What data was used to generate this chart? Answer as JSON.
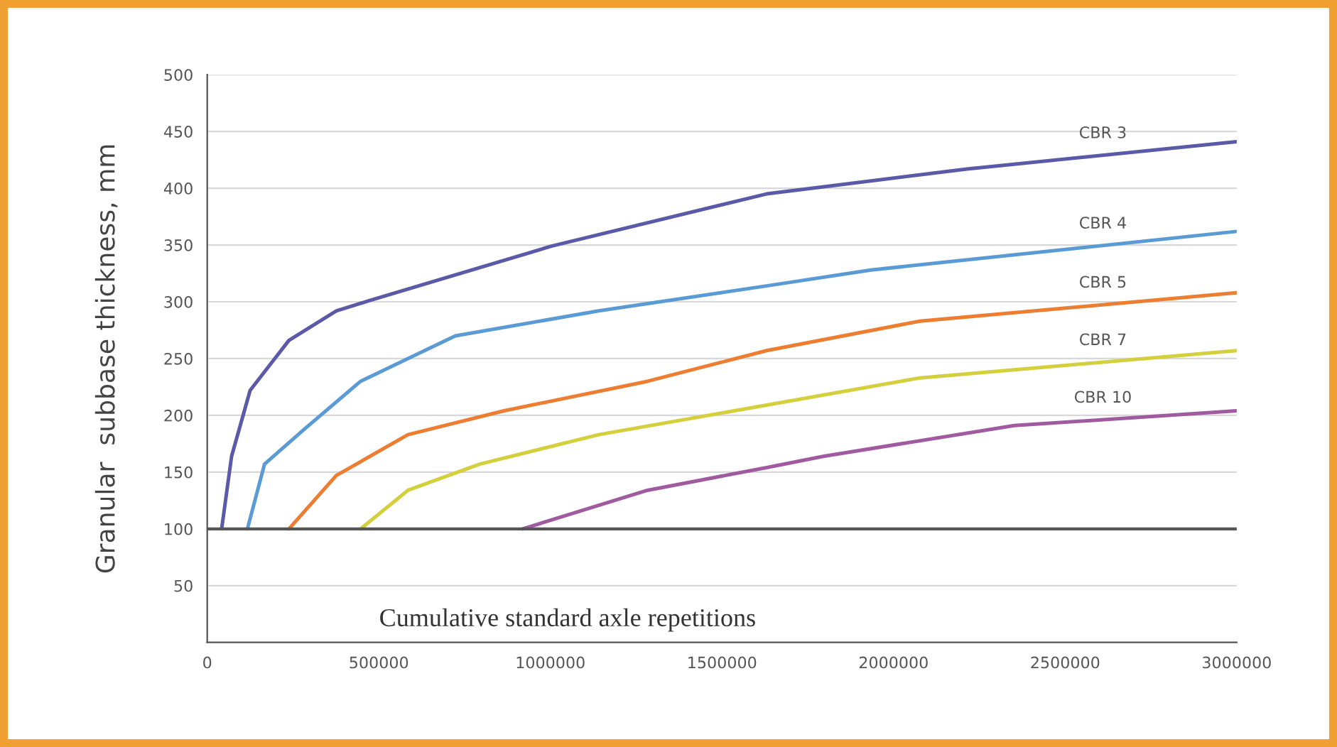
{
  "chart_data": {
    "type": "line",
    "ylabel": "Granular  subbase thickness, mm",
    "xlabel": "Cumulative standard axle repetitions",
    "xlim": [
      0,
      3000000
    ],
    "xticks": [
      0,
      500000,
      1000000,
      1500000,
      2000000,
      2500000,
      3000000
    ],
    "ylim": [
      0,
      500
    ],
    "yticks": [
      50,
      100,
      150,
      200,
      250,
      300,
      350,
      400,
      450,
      500
    ],
    "grid": "y",
    "legend": false,
    "line_style": "solid",
    "marker": "none",
    "ref_lines": [
      {
        "axis": "y",
        "value": 100,
        "color": "#555555"
      }
    ],
    "series": [
      {
        "name": "CBR 3",
        "color": "#5a5aa8",
        "x": [
          42000,
          71000,
          125000,
          238000,
          376000,
          472000,
          1003000,
          1630000,
          2214000,
          3000000
        ],
        "values": [
          100,
          164,
          222,
          266,
          292,
          301,
          349,
          395,
          417,
          441
        ]
      },
      {
        "name": "CBR 4",
        "color": "#5b9bd5",
        "x": [
          117000,
          167000,
          280000,
          447000,
          723000,
          1141000,
          1630000,
          1934000,
          3000000
        ],
        "values": [
          100,
          157,
          187,
          230,
          270,
          292,
          314,
          328,
          362
        ]
      },
      {
        "name": "CBR 5",
        "color": "#ed7d31",
        "x": [
          238000,
          376000,
          585000,
          865000,
          1283000,
          1630000,
          2077000,
          3000000
        ],
        "values": [
          100,
          147,
          183,
          204,
          230,
          257,
          283,
          308
        ]
      },
      {
        "name": "CBR 7",
        "color": "#d4cf3c",
        "x": [
          447000,
          585000,
          794000,
          1141000,
          1630000,
          2077000,
          3000000
        ],
        "values": [
          100,
          134,
          157,
          183,
          209,
          233,
          257
        ]
      },
      {
        "name": "CBR 10",
        "color": "#a05aa0",
        "x": [
          919000,
          1283000,
          1630000,
          1797000,
          2352000,
          3000000
        ],
        "values": [
          100,
          134,
          154,
          164,
          191,
          204
        ]
      }
    ]
  }
}
